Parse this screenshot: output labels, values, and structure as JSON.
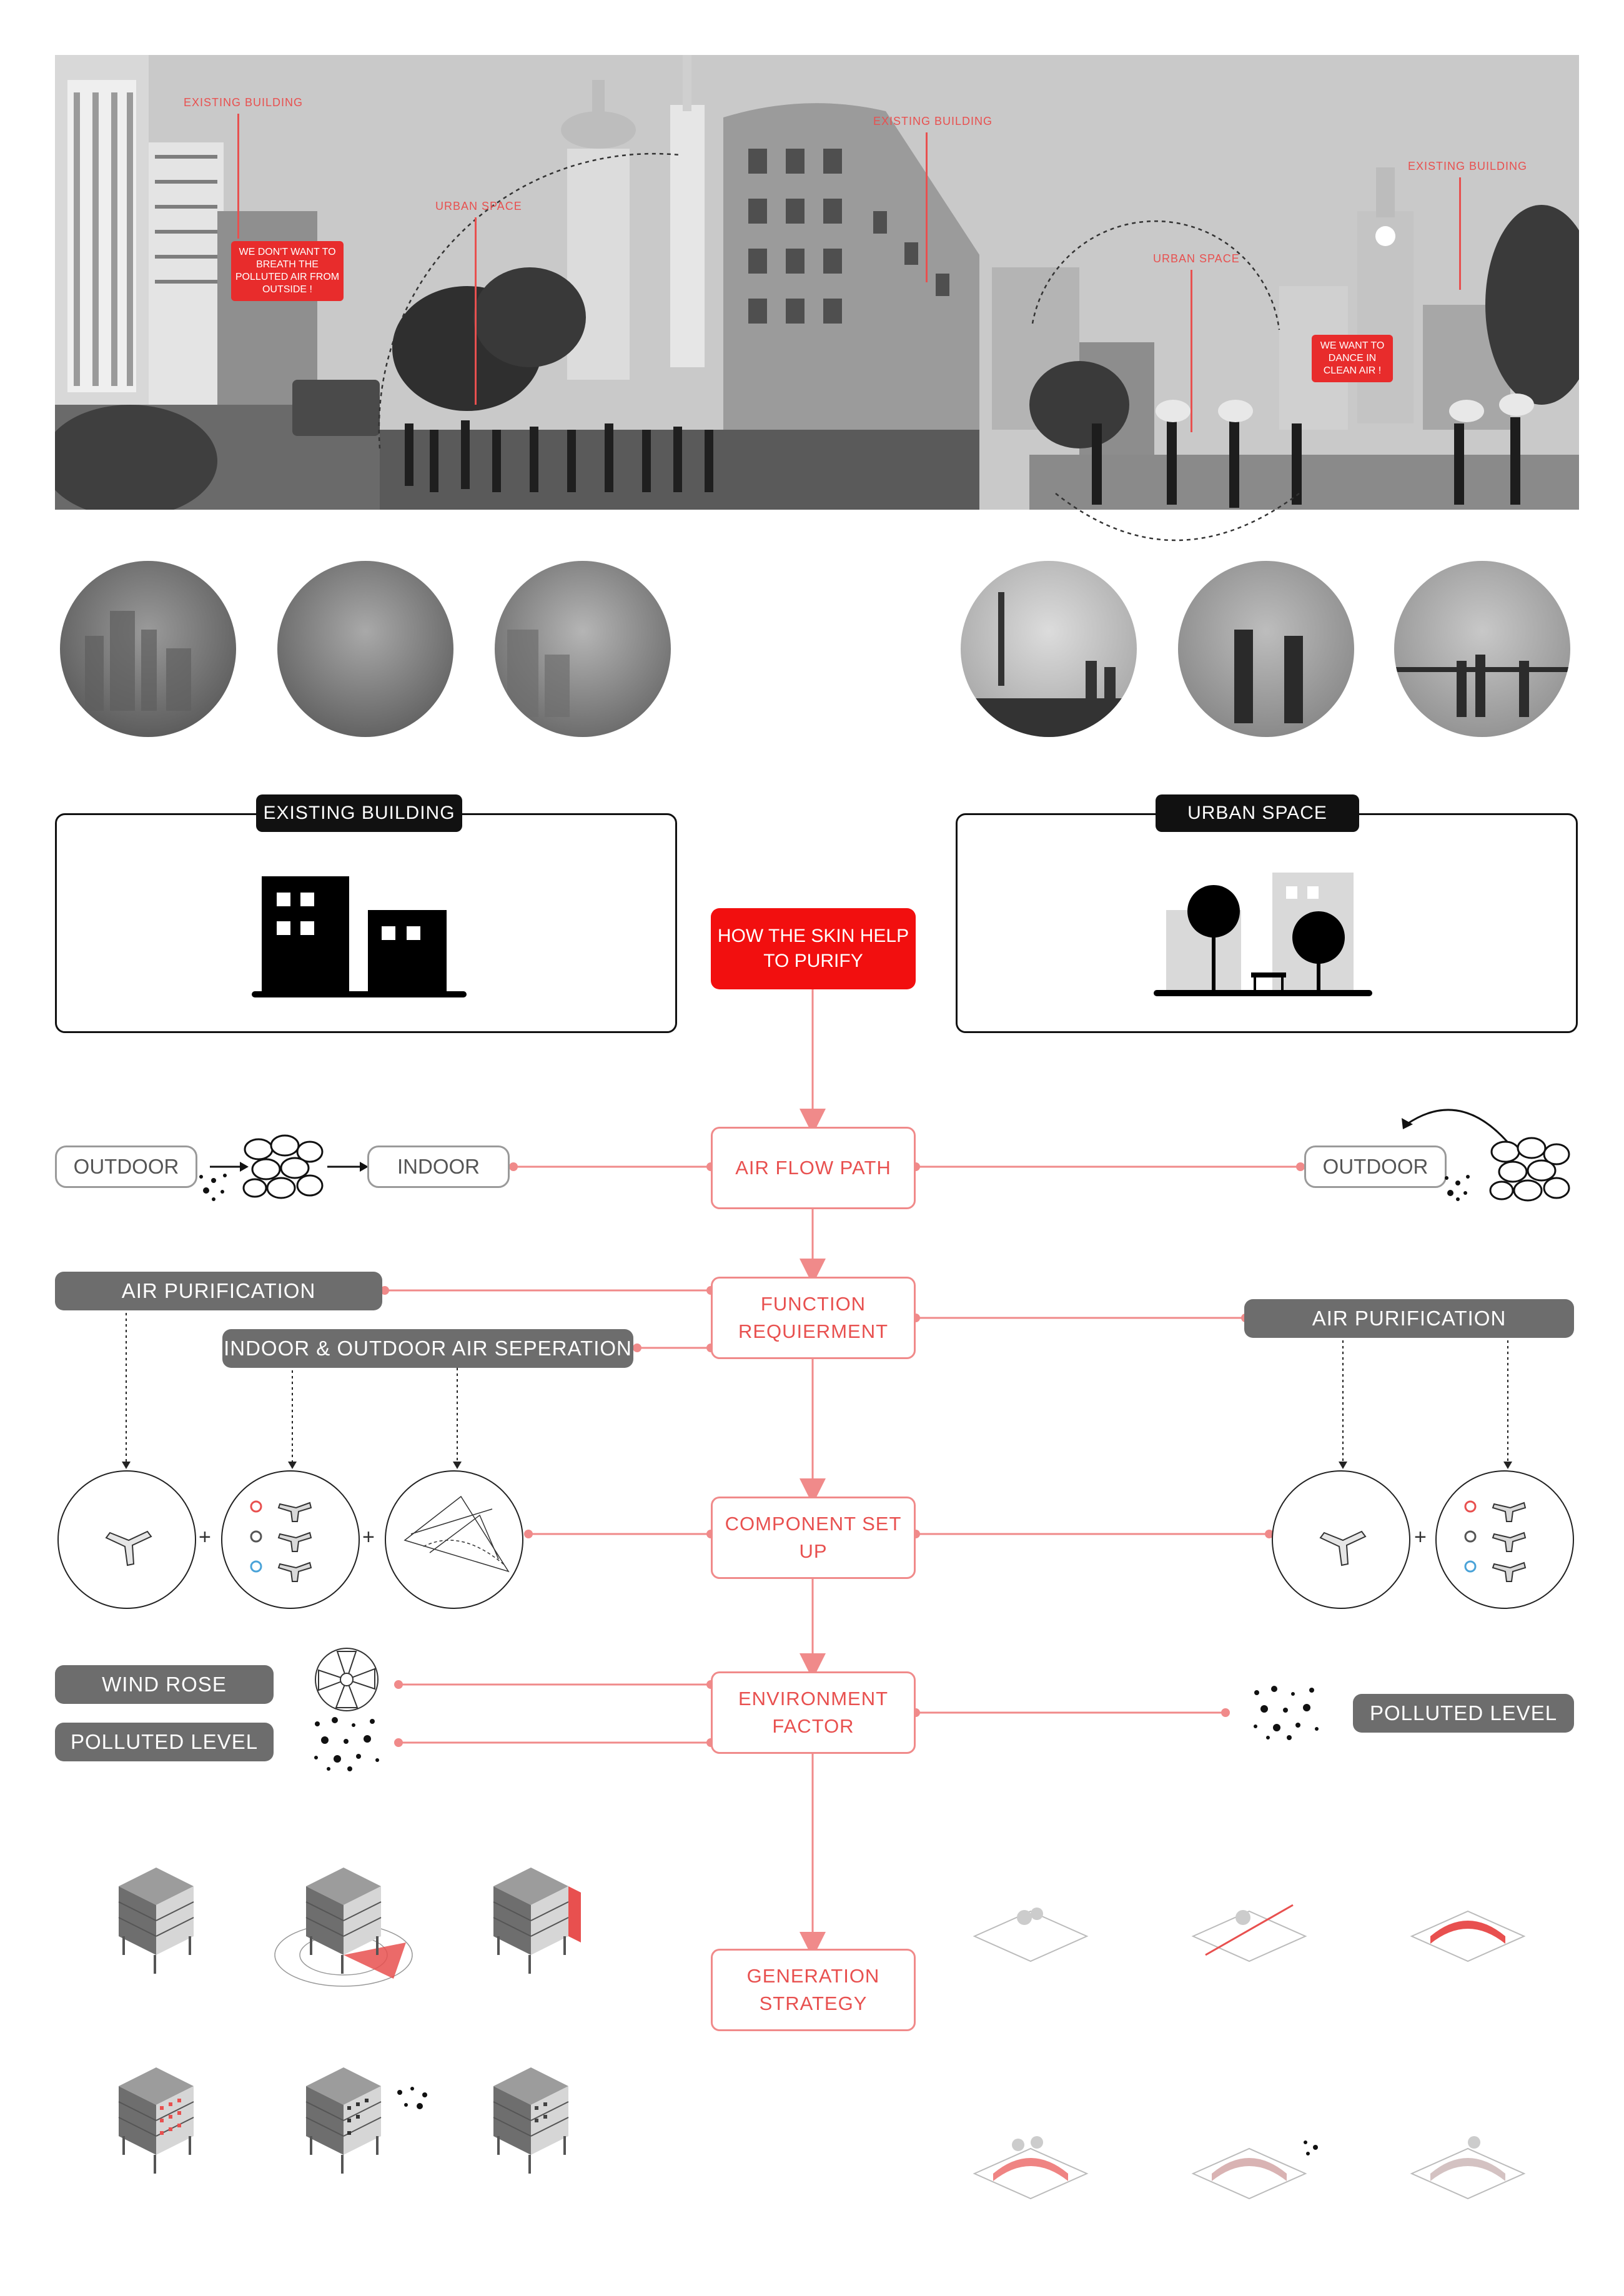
{
  "photo_strip": {
    "labels": {
      "existing_building_1": "EXISTING BUILDING",
      "urban_space_1": "URBAN SPACE",
      "existing_building_2": "EXISTING BUILDING",
      "urban_space_2": "URBAN SPACE",
      "existing_building_3": "EXISTING BUILDING"
    },
    "speech_left": "WE DON'T WANT TO BREATH THE POLLUTED AIR FROM OUTSIDE !",
    "speech_right": "WE WANT TO DANCE IN CLEAN AIR !"
  },
  "categories": {
    "existing_building": "EXISTING BUILDING",
    "urban_space": "URBAN SPACE"
  },
  "flow": {
    "header": "HOW THE SKIN HELP TO PURIFY",
    "air_flow_path": "AIR FLOW PATH",
    "function_requirement": "FUNCTION REQUIERMENT",
    "component_set_up": "COMPONENT SET UP",
    "environment_factor": "ENVIRONMENT FACTOR",
    "generation_strategy": "GENERATION STRATEGY"
  },
  "air_flow": {
    "left_outdoor": "OUTDOOR",
    "left_indoor": "INDOOR",
    "right_outdoor": "OUTDOOR"
  },
  "function": {
    "left_air_purification": "AIR PURIFICATION",
    "left_separation": "INDOOR & OUTDOOR AIR SEPERATION",
    "right_air_purification": "AIR PURIFICATION"
  },
  "component": {
    "plus": "+"
  },
  "environment": {
    "wind_rose": "WIND ROSE",
    "polluted_level_left": "POLLUTED LEVEL",
    "polluted_level_right": "POLLUTED LEVEL"
  },
  "colors": {
    "accent_red": "#e8504f",
    "bright_red": "#f20f0f",
    "grey_pill": "#6d6d6d",
    "black": "#111111"
  }
}
